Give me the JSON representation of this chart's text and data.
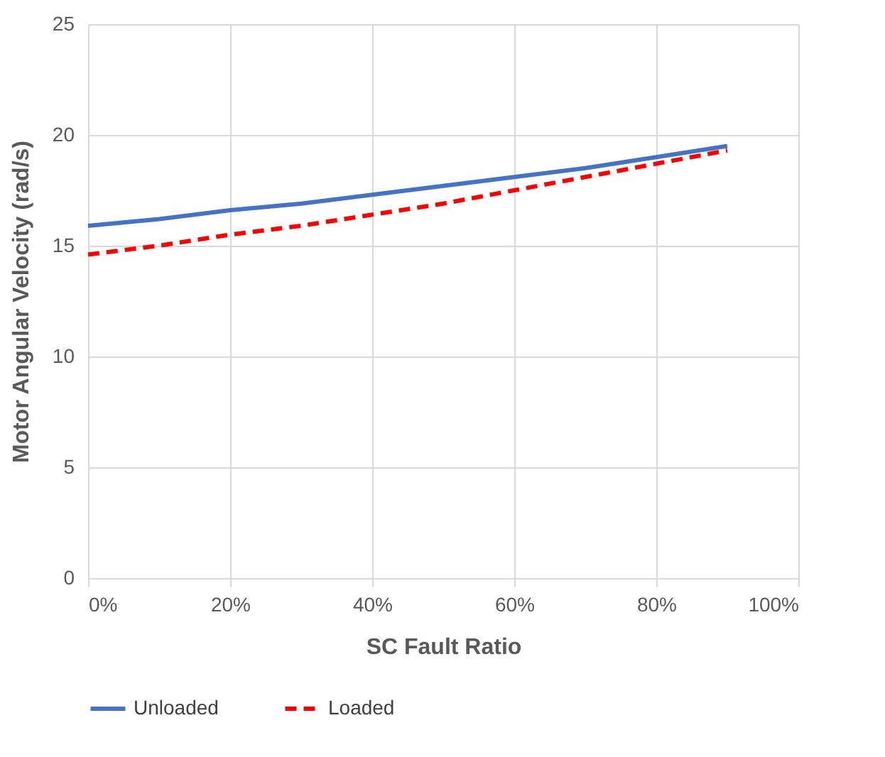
{
  "chart_data": {
    "type": "line",
    "xlabel": "SC Fault Ratio",
    "ylabel": "Motor Angular Velocity (rad/s)",
    "x": [
      0,
      10,
      20,
      30,
      40,
      50,
      60,
      70,
      80,
      90
    ],
    "series": [
      {
        "name": "Unloaded",
        "color": "#4472c4",
        "line_style": "solid",
        "values": [
          15.9,
          16.2,
          16.6,
          16.9,
          17.3,
          17.7,
          18.1,
          18.5,
          19.0,
          19.5
        ]
      },
      {
        "name": "Loaded",
        "color": "#ff0000",
        "line_style": "dashed",
        "values": [
          14.6,
          15.0,
          15.5,
          15.9,
          16.4,
          16.9,
          17.5,
          18.1,
          18.7,
          19.3
        ]
      }
    ],
    "xlim": [
      0,
      100
    ],
    "xticks": [
      {
        "value": 0,
        "label": "0%"
      },
      {
        "value": 20,
        "label": "20%"
      },
      {
        "value": 40,
        "label": "40%"
      },
      {
        "value": 60,
        "label": "60%"
      },
      {
        "value": 80,
        "label": "80%"
      },
      {
        "value": 100,
        "label": "100%"
      }
    ],
    "ylim": [
      0,
      25
    ],
    "yticks": [
      0,
      5,
      10,
      15,
      20,
      25
    ],
    "grid": true,
    "legend": "bottom",
    "marker": "none"
  }
}
